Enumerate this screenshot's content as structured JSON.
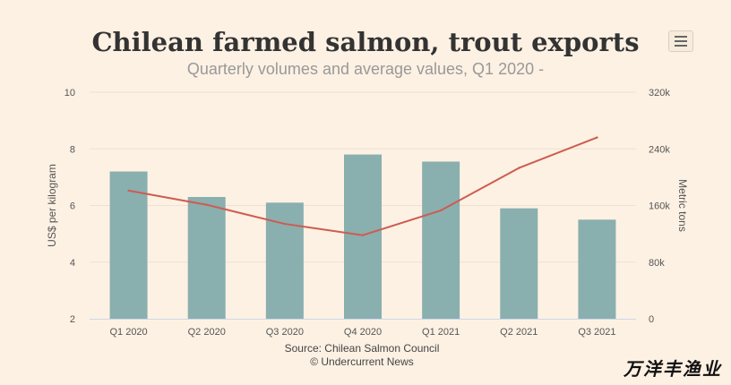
{
  "title": "Chilean farmed salmon, trout exports",
  "subtitle": "Quarterly volumes and average values, Q1 2020 -",
  "credits": {
    "line1": "Source: Chilean Salmon Council",
    "line2": "© Undercurrent News"
  },
  "watermark": "万洋丰渔业",
  "menu_icon": "hamburger-menu-icon",
  "colors": {
    "bars": "#8aafaf",
    "line": "#cd5c50",
    "background": "#fdf1e3"
  },
  "chart_data": {
    "type": "bar",
    "categories": [
      "Q1 2020",
      "Q2 2020",
      "Q3 2020",
      "Q4 2020",
      "Q1 2021",
      "Q2 2021",
      "Q3 2021"
    ],
    "series": [
      {
        "type": "bar",
        "axis": "left",
        "values": [
          7.2,
          6.3,
          6.1,
          7.8,
          7.55,
          5.9,
          5.5
        ]
      },
      {
        "type": "line",
        "axis": "right",
        "values": [
          181000,
          161000,
          134000,
          118000,
          153000,
          213000,
          256000
        ]
      }
    ],
    "ylabel": "US$ per kilogram",
    "ylim": [
      2,
      10
    ],
    "yticks": [
      "2",
      "4",
      "6",
      "8",
      "10"
    ],
    "y2label": "Metric tons",
    "y2lim": [
      0,
      320000
    ],
    "y2ticks": [
      "0",
      "80k",
      "160k",
      "240k",
      "320k"
    ],
    "grid": true,
    "legend": "none"
  }
}
